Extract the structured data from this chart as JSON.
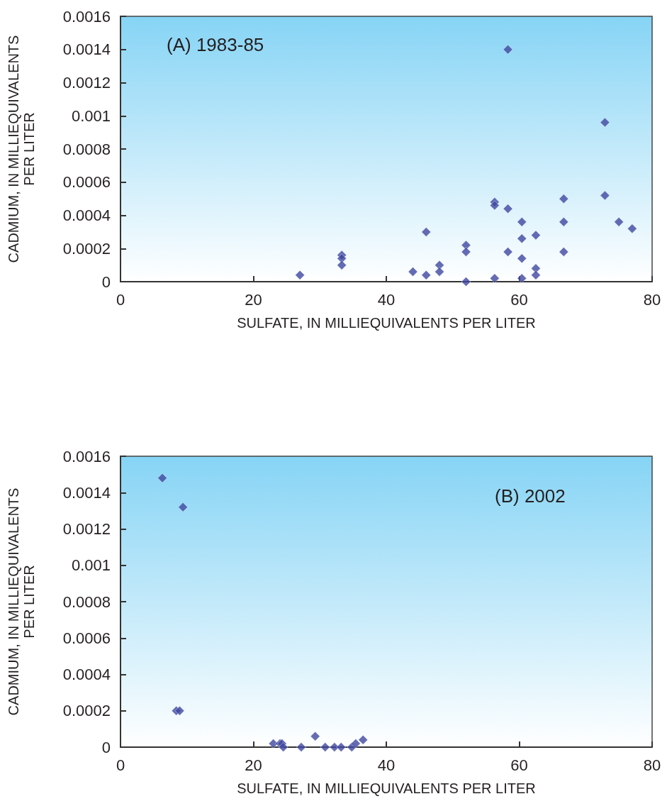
{
  "chart_data": [
    {
      "type": "scatter",
      "title": "(A) 1983-85",
      "xlabel": "SULFATE, IN MILLIEQUIVALENTS PER LITER",
      "ylabel": "CADMIUM, IN MILLIEQUIVALENTS\nPER LITER",
      "series": [
        {
          "color": "#3f47a0",
          "x": [
            27,
            33.3,
            33.3,
            33.3,
            44,
            46,
            46,
            48,
            48,
            52,
            52,
            52,
            56.3,
            56.3,
            56.3,
            58.3,
            58.3,
            58.3,
            60.4,
            60.4,
            60.4,
            60.4,
            62.5,
            62.5,
            62.5,
            66.7,
            66.7,
            66.7,
            72.9,
            72.9,
            75,
            77
          ],
          "values": [
            4e-05,
            0.00016,
            0.00014,
            0.0001,
            6e-05,
            0.0003,
            4e-05,
            0.0001,
            6e-05,
            0.00022,
            0.00018,
            0,
            0.00048,
            0.00046,
            2e-05,
            0.0014,
            0.00044,
            0.00018,
            0.00036,
            0.00026,
            0.00014,
            2e-05,
            0.00028,
            8e-05,
            4e-05,
            0.0005,
            0.00036,
            0.00018,
            0.00096,
            0.00052,
            0.00036,
            0.00032
          ]
        }
      ],
      "xlim": [
        0,
        80
      ],
      "xticks": [
        0,
        20,
        40,
        60,
        80
      ],
      "ylim": [
        0,
        0.0016
      ],
      "yticks": [
        0,
        0.0002,
        0.0004,
        0.0006,
        0.0008,
        0.001,
        0.0012,
        0.0014,
        0.0016
      ],
      "marker": "diamond"
    },
    {
      "type": "scatter",
      "title": "(B) 2002",
      "xlabel": "SULFATE, IN MILLIEQUIVALENTS PER LITER",
      "ylabel": "CADMIUM, IN MILLIEQUIVALENTS\nPER LITER",
      "series": [
        {
          "color": "#3f47a0",
          "x": [
            6.3,
            9.4,
            8.4,
            8.9,
            23,
            24,
            24.3,
            24.5,
            27.2,
            29.3,
            30.8,
            32.2,
            33.2,
            34.8,
            35.4,
            36.5
          ],
          "values": [
            0.00148,
            0.00132,
            0.0002,
            0.0002,
            2e-05,
            2e-05,
            2e-05,
            0,
            0,
            6e-05,
            0,
            0,
            0,
            0,
            2e-05,
            4e-05
          ]
        }
      ],
      "xlim": [
        0,
        80
      ],
      "xticks": [
        0,
        20,
        40,
        60,
        80
      ],
      "ylim": [
        0,
        0.0016
      ],
      "yticks": [
        0,
        0.0002,
        0.0004,
        0.0006,
        0.0008,
        0.001,
        0.0012,
        0.0014,
        0.0016
      ],
      "marker": "diamond"
    }
  ]
}
